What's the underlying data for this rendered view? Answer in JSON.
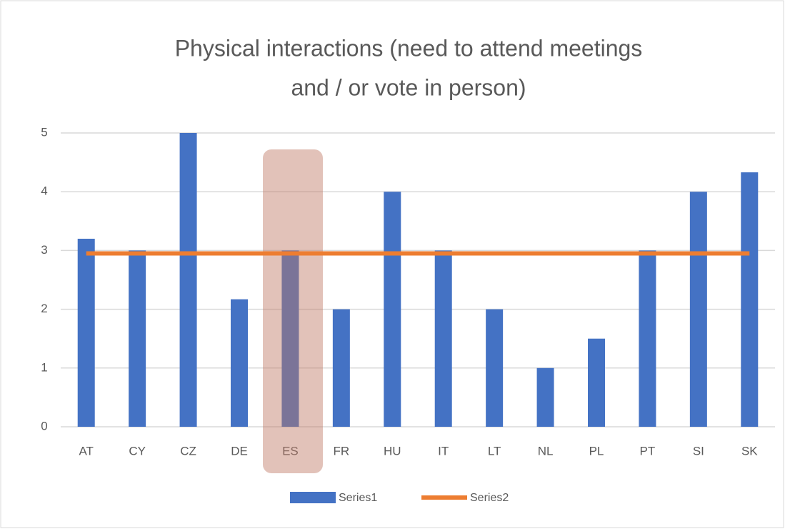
{
  "chart_data": {
    "type": "bar_line",
    "title": [
      "Physical interactions (need to attend meetings",
      "and / or vote in person)"
    ],
    "categories": [
      "AT",
      "CY",
      "CZ",
      "DE",
      "ES",
      "FR",
      "HU",
      "IT",
      "LT",
      "NL",
      "PL",
      "PT",
      "SI",
      "SK"
    ],
    "series": [
      {
        "name": "Series1",
        "type": "bar",
        "color": "#4472c4",
        "values": [
          3.2,
          3,
          5,
          2.17,
          3,
          2,
          4,
          3,
          2,
          1,
          1.5,
          3,
          4,
          4.33
        ]
      },
      {
        "name": "Series2",
        "type": "line",
        "color": "#ed7d31",
        "values": [
          2.95,
          2.95,
          2.95,
          2.95,
          2.95,
          2.95,
          2.95,
          2.95,
          2.95,
          2.95,
          2.95,
          2.95,
          2.95,
          2.95
        ]
      }
    ],
    "ylim": [
      0,
      5
    ],
    "yticks": [
      0,
      1,
      2,
      3,
      4,
      5
    ],
    "grid": true,
    "legend": "bottom"
  }
}
